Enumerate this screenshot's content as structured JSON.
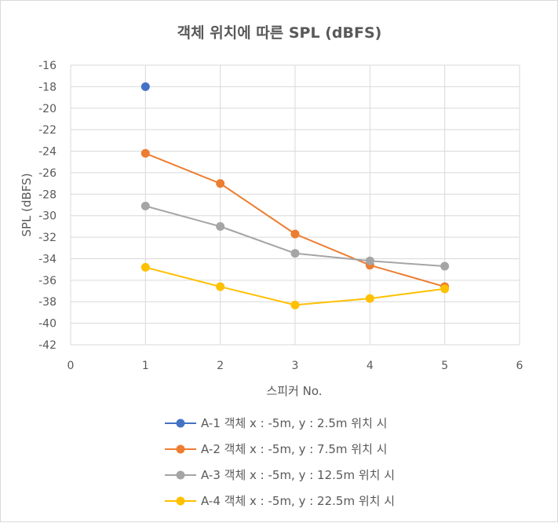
{
  "chart_data": {
    "type": "scatter",
    "title": "객체 위치에 따른 SPL (dBFS)",
    "xlabel": "스피커 No.",
    "ylabel": "SPL (dBFS)",
    "xlim": [
      0,
      6
    ],
    "ylim": [
      -42,
      -16
    ],
    "xticks": [
      0,
      1,
      2,
      3,
      4,
      5,
      6
    ],
    "yticks": [
      -16,
      -18,
      -20,
      -22,
      -24,
      -26,
      -28,
      -30,
      -32,
      -34,
      -36,
      -38,
      -40,
      -42
    ],
    "grid": true,
    "legend_position": "bottom",
    "series": [
      {
        "name": "A-1 객체 x : -5m, y : 2.5m 위치 시",
        "color": "#4472c4",
        "x": [
          1
        ],
        "y": [
          -18.0
        ]
      },
      {
        "name": "A-2 객체 x : -5m, y : 7.5m 위치 시",
        "color": "#ed7d31",
        "x": [
          1,
          2,
          3,
          4,
          5
        ],
        "y": [
          -24.2,
          -27.0,
          -31.7,
          -34.6,
          -36.6
        ]
      },
      {
        "name": "A-3 객체 x : -5m, y : 12.5m 위치 시",
        "color": "#a5a5a5",
        "x": [
          1,
          2,
          3,
          4,
          5
        ],
        "y": [
          -29.1,
          -31.0,
          -33.5,
          -34.2,
          -34.7
        ]
      },
      {
        "name": "A-4 객체 x : -5m, y : 22.5m 위치 시",
        "color": "#ffc000",
        "x": [
          1,
          2,
          3,
          4,
          5
        ],
        "y": [
          -34.8,
          -36.6,
          -38.3,
          -37.7,
          -36.8
        ]
      }
    ]
  }
}
